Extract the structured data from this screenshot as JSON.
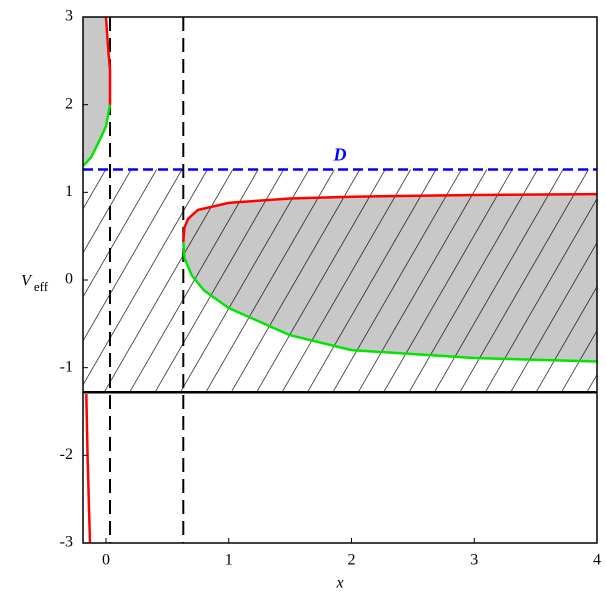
{
  "chart_data": {
    "type": "line",
    "xlabel": "x",
    "ylabel": "V",
    "ylabel_sub": "eff",
    "xlim": [
      -0.187,
      4
    ],
    "ylim": [
      -3,
      3
    ],
    "xticks": [
      0,
      1,
      2,
      3,
      4
    ],
    "yticks": [
      -3,
      -2,
      -1,
      0,
      1,
      2,
      3
    ],
    "shade_color": "#c8c8c8",
    "vlines": [
      0.033,
      0.63
    ],
    "series": [
      {
        "color": "#ff0000",
        "x": [
          0.63,
          0.64,
          0.67,
          0.75,
          1,
          1.5,
          2,
          3,
          4
        ],
        "values": [
          0.43,
          0.6,
          0.7,
          0.8,
          0.88,
          0.93,
          0.95,
          0.97,
          0.98
        ]
      },
      {
        "color": "#00e600",
        "x": [
          0.63,
          0.64,
          0.7,
          0.8,
          1,
          1.5,
          2,
          3,
          4
        ],
        "values": [
          0.43,
          0.25,
          0.05,
          -0.12,
          -0.32,
          -0.63,
          -0.8,
          -0.89,
          -0.93
        ]
      },
      {
        "color": "#ff0000",
        "x": [
          0.0,
          0.02,
          0.033,
          0.033
        ],
        "values": [
          3,
          2.6,
          2.4,
          2.0
        ]
      },
      {
        "color": "#00e600",
        "x": [
          -0.187,
          -0.12,
          -0.05,
          0.0,
          0.033
        ],
        "values": [
          1.3,
          1.4,
          1.6,
          1.75,
          2.0
        ]
      },
      {
        "color": "#ff0000",
        "x": [
          -0.16,
          -0.15,
          -0.14,
          -0.13
        ],
        "values": [
          -1.3,
          -2,
          -2.5,
          -3
        ]
      },
      {
        "name": "D",
        "color": "#0000ff",
        "x": [
          -0.187,
          4
        ],
        "values": [
          1.26,
          1.26
        ]
      },
      {
        "color": "#000000",
        "x": [
          -0.187,
          4
        ],
        "values": [
          -1.28,
          -1.28
        ]
      }
    ]
  }
}
